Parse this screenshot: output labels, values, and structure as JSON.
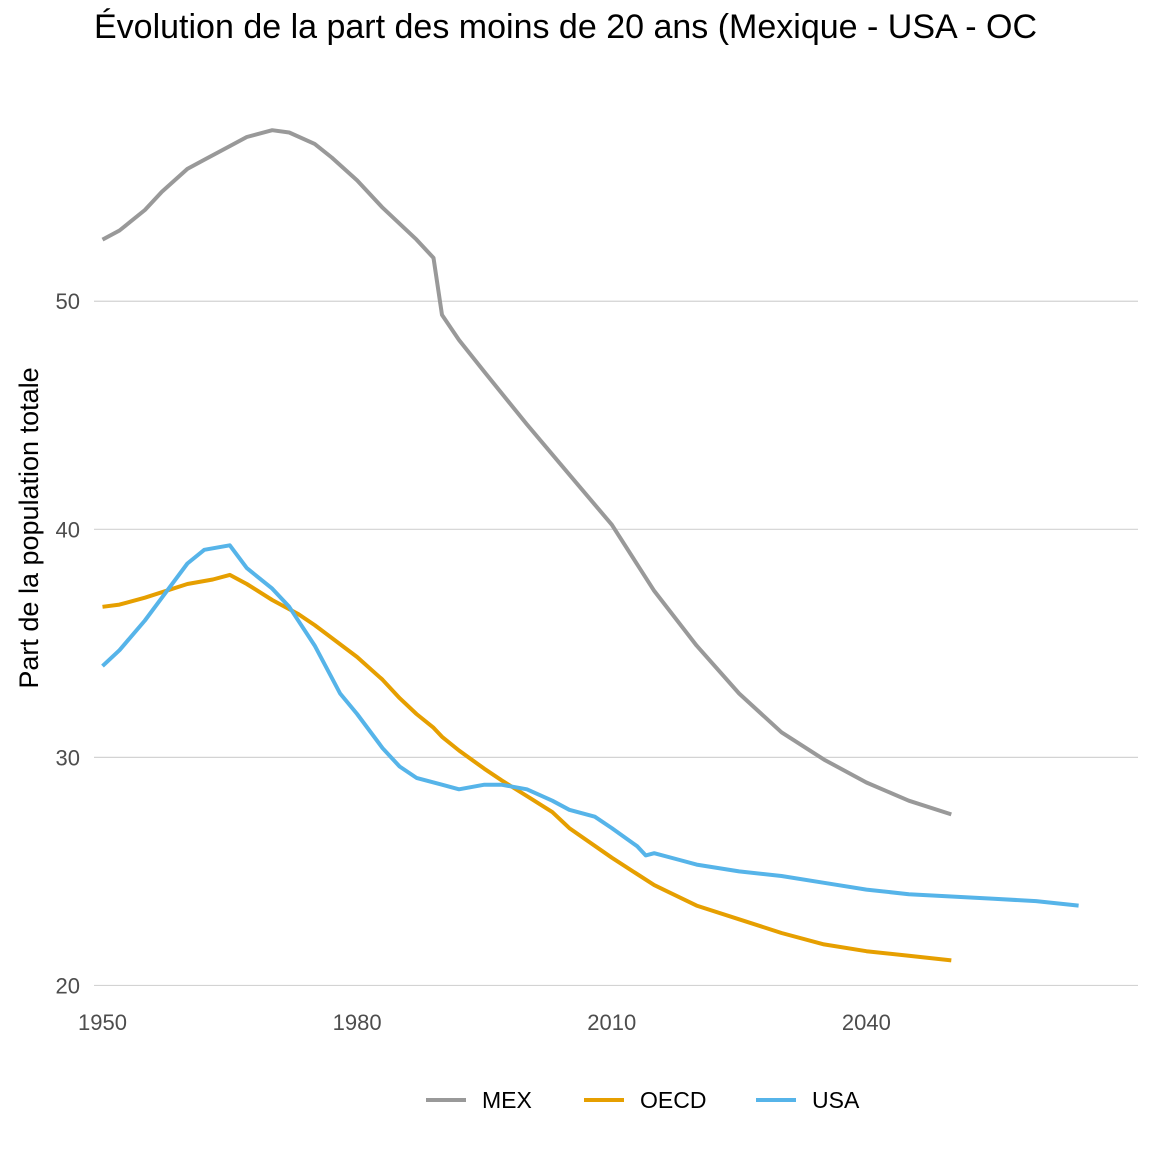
{
  "chart_data": {
    "type": "line",
    "title": "Évolution de la part des moins de 20 ans (Mexique - USA - OC",
    "xlabel": "",
    "ylabel": "Part de la population totale",
    "xlim": [
      1949,
      2072
    ],
    "ylim": [
      19.8,
      59.7
    ],
    "x_ticks": [
      1950,
      1980,
      2010,
      2040
    ],
    "y_ticks": [
      20,
      30,
      40,
      50
    ],
    "grid": "horizontal major",
    "legend": "bottom",
    "series": [
      {
        "name": "MEX",
        "color": "#999999",
        "x": [
          1950,
          1952,
          1955,
          1957,
          1960,
          1962,
          1965,
          1967,
          1970,
          1972,
          1975,
          1977,
          1980,
          1983,
          1985,
          1987,
          1989,
          1990,
          1992,
          1995,
          2000,
          2005,
          2010,
          2015,
          2020,
          2025,
          2030,
          2035,
          2040,
          2045,
          2050
        ],
        "y": [
          52.7,
          53.1,
          54.0,
          54.8,
          55.8,
          56.2,
          56.8,
          57.2,
          57.5,
          57.4,
          56.9,
          56.3,
          55.3,
          54.1,
          53.4,
          52.7,
          51.9,
          49.4,
          48.3,
          46.9,
          44.6,
          42.4,
          40.2,
          37.3,
          34.9,
          32.8,
          31.1,
          29.9,
          28.9,
          28.1,
          27.5
        ]
      },
      {
        "name": "OECD",
        "color": "#E69F00",
        "x": [
          1950,
          1952,
          1955,
          1960,
          1963,
          1965,
          1967,
          1970,
          1973,
          1975,
          1980,
          1983,
          1985,
          1987,
          1989,
          1990,
          1992,
          1995,
          1997,
          2000,
          2003,
          2005,
          2010,
          2015,
          2020,
          2025,
          2030,
          2035,
          2040,
          2045,
          2050
        ],
        "y": [
          36.6,
          36.7,
          37.0,
          37.6,
          37.8,
          38.0,
          37.6,
          36.9,
          36.3,
          35.8,
          34.4,
          33.4,
          32.6,
          31.9,
          31.3,
          30.9,
          30.3,
          29.5,
          29.0,
          28.3,
          27.6,
          26.9,
          25.6,
          24.4,
          23.5,
          22.9,
          22.3,
          21.8,
          21.5,
          21.3,
          21.1
        ]
      },
      {
        "name": "USA",
        "color": "#56B4E9",
        "x": [
          1950,
          1952,
          1955,
          1957,
          1960,
          1962,
          1965,
          1967,
          1970,
          1972,
          1975,
          1978,
          1980,
          1983,
          1985,
          1987,
          1990,
          1992,
          1995,
          1997,
          2000,
          2003,
          2005,
          2008,
          2010,
          2013,
          2014,
          2015,
          2018,
          2020,
          2025,
          2030,
          2035,
          2040,
          2045,
          2050,
          2055,
          2060,
          2065
        ],
        "y": [
          34.0,
          34.7,
          36.0,
          37.0,
          38.5,
          39.1,
          39.3,
          38.3,
          37.4,
          36.6,
          34.9,
          32.8,
          31.9,
          30.4,
          29.6,
          29.1,
          28.8,
          28.6,
          28.8,
          28.8,
          28.6,
          28.1,
          27.7,
          27.4,
          26.9,
          26.1,
          25.7,
          25.8,
          25.5,
          25.3,
          25.0,
          24.8,
          24.5,
          24.2,
          24.0,
          23.9,
          23.8,
          23.7,
          23.5
        ]
      }
    ]
  }
}
